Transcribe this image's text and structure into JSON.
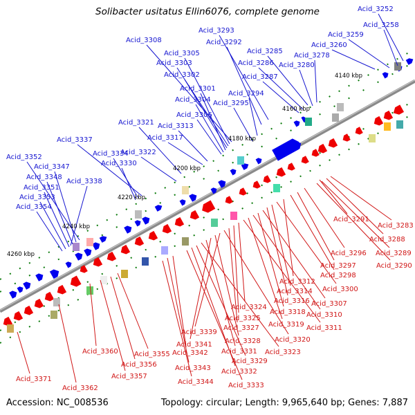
{
  "title": "Solibacter usitatus Ellin6076, complete genome",
  "footer": {
    "accession": "Accession: NC_008536",
    "summary": "Topology: circular; Length: 9,965,640 bp; Genes: 7,887"
  },
  "colors": {
    "forward_gene": "#0000ee",
    "reverse_gene": "#ee0000",
    "forward_label": "#1515d0",
    "reverse_label": "#d01515",
    "genome_line": "#909090",
    "tick": "#0a7a0a"
  },
  "ticks": [
    "4140 kbp",
    "4160 kbp",
    "4180 kbp",
    "4200 kbp",
    "4220 kbp",
    "4240 kbp",
    "4260 kbp"
  ],
  "forward_genes": [
    "Acid_3252",
    "Acid_3258",
    "Acid_3259",
    "Acid_3260",
    "Acid_3278",
    "Acid_3280",
    "Acid_3285",
    "Acid_3286",
    "Acid_3287",
    "Acid_3293",
    "Acid_3292",
    "Acid_3294",
    "Acid_3295",
    "Acid_3308",
    "Acid_3305",
    "Acid_3303",
    "Acid_3302",
    "Acid_3301",
    "Acid_3304",
    "Acid_3306",
    "Acid_3321",
    "Acid_3313",
    "Acid_3317",
    "Acid_3322",
    "Acid_3337",
    "Acid_3334",
    "Acid_3330",
    "Acid_3352",
    "Acid_3347",
    "Acid_3348",
    "Acid_3338",
    "Acid_3351",
    "Acid_3353",
    "Acid_3354"
  ],
  "reverse_genes": [
    "Acid_3291",
    "Acid_3283",
    "Acid_3288",
    "Acid_3289",
    "Acid_3290",
    "Acid_3296",
    "Acid_3297",
    "Acid_3298",
    "Acid_3312",
    "Acid_3300",
    "Acid_3314",
    "Acid_3316",
    "Acid_3307",
    "Acid_3318",
    "Acid_3310",
    "Acid_3319",
    "Acid_3311",
    "Acid_3324",
    "Acid_3325",
    "Acid_3327",
    "Acid_3320",
    "Acid_3339",
    "Acid_3328",
    "Acid_3341",
    "Acid_3331",
    "Acid_3323",
    "Acid_3360",
    "Acid_3355",
    "Acid_3342",
    "Acid_3329",
    "Acid_3356",
    "Acid_3343",
    "Acid_3332",
    "Acid_3357",
    "Acid_3344",
    "Acid_3333",
    "Acid_3371",
    "Acid_3362"
  ]
}
